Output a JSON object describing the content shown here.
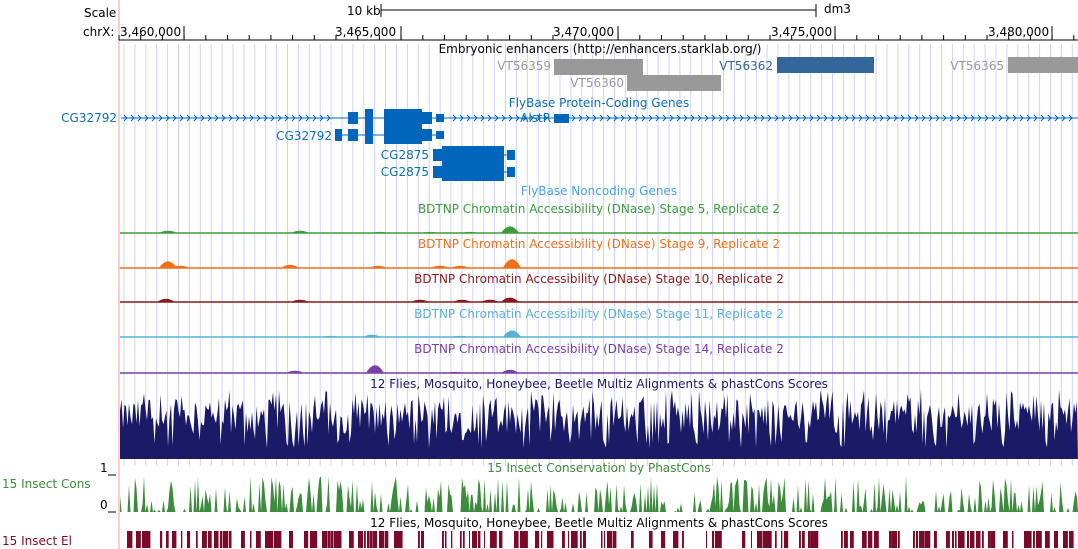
{
  "colors": {
    "enh_gray": "#999999",
    "enh_highlight": "#336699",
    "gene_blue": "#0066bb",
    "label_blue": "#0a6eb4",
    "noncoding": "#4aa3df",
    "grid": "#d0d0ff",
    "stage5": "#3a9d3a",
    "stage9": "#f07018",
    "stage10": "#8b1a1a",
    "stage11": "#59b0d8",
    "stage14": "#7a3fa5",
    "multiz": "#1a1a66",
    "cons15": "#3d8b3d",
    "el15": "#7a0a2a",
    "left_edge": "#ff9999"
  },
  "ruler": {
    "scale_label": "Scale",
    "chrom_label": "chrX:",
    "scalebar_label": "10 kb",
    "assembly": "dm3",
    "ticks": [
      "3,460,000",
      "3,465,000",
      "3,470,000",
      "3,475,000",
      "3,480,000"
    ]
  },
  "tracks": {
    "enhancers": {
      "title": "Embryonic enhancers (http://enhancers.starklab.org/)",
      "items": [
        {
          "label": "VT56359",
          "highlight": false
        },
        {
          "label": "VT56360",
          "highlight": false
        },
        {
          "label": "VT56362",
          "highlight": true
        },
        {
          "label": "VT56365",
          "highlight": false
        }
      ]
    },
    "coding": {
      "title": "FlyBase Protein-Coding Genes",
      "genes": [
        "CG32792",
        "CG32792",
        "CG2875",
        "CG2875",
        "AlstR"
      ]
    },
    "noncoding": {
      "title": "FlyBase Noncoding Genes"
    },
    "dnase": [
      {
        "title": "BDTNP Chromatin Accessibility (DNase) Stage 5, Replicate 2"
      },
      {
        "title": "BDTNP Chromatin Accessibility (DNase) Stage 9, Replicate 2"
      },
      {
        "title": "BDTNP Chromatin Accessibility (DNase) Stage 10, Replicate 2"
      },
      {
        "title": "BDTNP Chromatin Accessibility (DNase) Stage 11, Replicate 2"
      },
      {
        "title": "BDTNP Chromatin Accessibility (DNase) Stage 14, Replicate 2"
      }
    ],
    "multiz": {
      "title": "12 Flies, Mosquito, Honeybee, Beetle Multiz Alignments & phastCons Scores"
    },
    "cons15": {
      "title": "15 Insect Conservation by PhastCons",
      "side_label": "15 Insect Cons",
      "axis_max": "1",
      "axis_min": "0"
    },
    "el15": {
      "title": "12 Flies, Mosquito, Honeybee, Beetle Multiz Alignments & phastCons Scores",
      "side_label": "15 Insect El"
    }
  }
}
